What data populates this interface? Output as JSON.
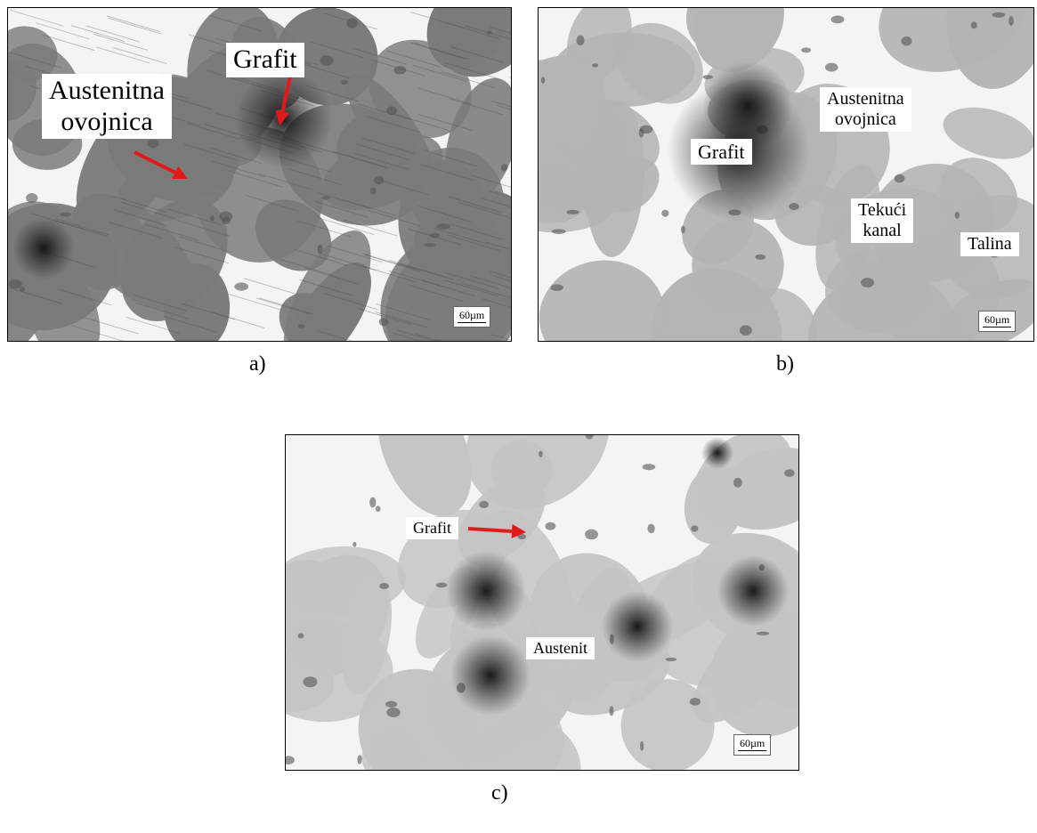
{
  "figure": {
    "panels": [
      {
        "caption": "a)",
        "labels": [
          {
            "lines": [
              "Grafit"
            ]
          },
          {
            "lines": [
              "Austenitna",
              "ovojnica"
            ]
          }
        ],
        "scale_bar": "60µm"
      },
      {
        "caption": "b)",
        "labels": [
          {
            "lines": [
              "Grafit"
            ]
          },
          {
            "lines": [
              "Austenitna",
              "ovojnica"
            ]
          },
          {
            "lines": [
              "Tekući",
              "kanal"
            ]
          },
          {
            "lines": [
              "Talina"
            ]
          }
        ],
        "scale_bar": "60µm"
      },
      {
        "caption": "c)",
        "labels": [
          {
            "lines": [
              "Grafit"
            ]
          },
          {
            "lines": [
              "Austenit"
            ]
          }
        ],
        "scale_bar": "60µm"
      }
    ]
  }
}
